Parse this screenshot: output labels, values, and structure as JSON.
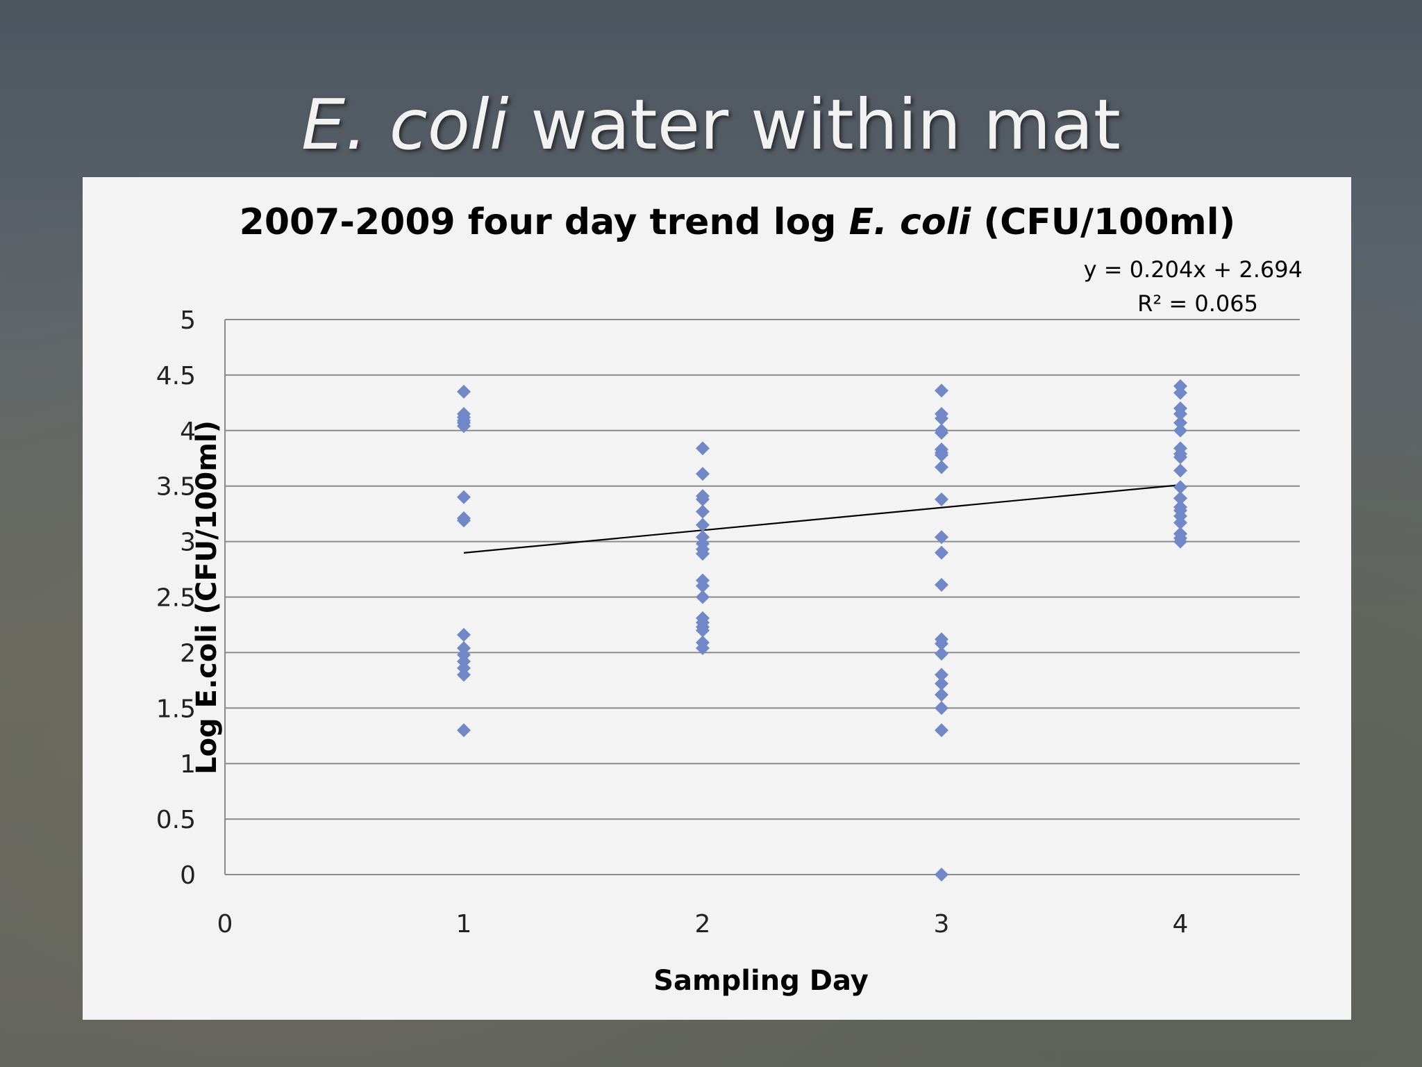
{
  "slide": {
    "title_italic": "E. coli",
    "title_rest": " water within mat"
  },
  "chart_data": {
    "type": "scatter",
    "title_prefix": "2007-2009 four day trend log ",
    "title_italic": "E. coli",
    "title_suffix": " (CFU/100ml)",
    "xlabel": "Sampling Day",
    "ylabel": "Log E.coli (CFU/100ml)",
    "xlim": [
      0,
      4.5
    ],
    "ylim": [
      0,
      5
    ],
    "x_ticks": [
      "0",
      "1",
      "2",
      "3",
      "4"
    ],
    "y_ticks": [
      "0",
      "0.5",
      "1",
      "1.5",
      "2",
      "2.5",
      "3",
      "3.5",
      "4",
      "4.5",
      "5"
    ],
    "grid": true,
    "marker_color": "#7088c8",
    "trendline": {
      "slope": 0.204,
      "intercept": 2.694,
      "x_range": [
        1,
        4
      ],
      "equation_label": "y = 0.204x + 2.694",
      "r2_label": "R² = 0.065",
      "color": "#000000"
    },
    "points": [
      {
        "x": 1,
        "y": 4.35
      },
      {
        "x": 1,
        "y": 4.15
      },
      {
        "x": 1,
        "y": 4.12
      },
      {
        "x": 1,
        "y": 4.09
      },
      {
        "x": 1,
        "y": 4.07
      },
      {
        "x": 1,
        "y": 4.04
      },
      {
        "x": 1,
        "y": 3.4
      },
      {
        "x": 1,
        "y": 3.21
      },
      {
        "x": 1,
        "y": 3.19
      },
      {
        "x": 1,
        "y": 2.16
      },
      {
        "x": 1,
        "y": 2.04
      },
      {
        "x": 1,
        "y": 1.98
      },
      {
        "x": 1,
        "y": 1.92
      },
      {
        "x": 1,
        "y": 1.86
      },
      {
        "x": 1,
        "y": 1.8
      },
      {
        "x": 1,
        "y": 1.3
      },
      {
        "x": 2,
        "y": 3.84
      },
      {
        "x": 2,
        "y": 3.61
      },
      {
        "x": 2,
        "y": 3.41
      },
      {
        "x": 2,
        "y": 3.38
      },
      {
        "x": 2,
        "y": 3.27
      },
      {
        "x": 2,
        "y": 3.15
      },
      {
        "x": 2,
        "y": 3.04
      },
      {
        "x": 2,
        "y": 2.98
      },
      {
        "x": 2,
        "y": 2.93
      },
      {
        "x": 2,
        "y": 2.89
      },
      {
        "x": 2,
        "y": 2.65
      },
      {
        "x": 2,
        "y": 2.6
      },
      {
        "x": 2,
        "y": 2.5
      },
      {
        "x": 2,
        "y": 2.31
      },
      {
        "x": 2,
        "y": 2.27
      },
      {
        "x": 2,
        "y": 2.23
      },
      {
        "x": 2,
        "y": 2.2
      },
      {
        "x": 2,
        "y": 2.09
      },
      {
        "x": 2,
        "y": 2.04
      },
      {
        "x": 3,
        "y": 4.36
      },
      {
        "x": 3,
        "y": 4.15
      },
      {
        "x": 3,
        "y": 4.11
      },
      {
        "x": 3,
        "y": 4.0
      },
      {
        "x": 3,
        "y": 3.98
      },
      {
        "x": 3,
        "y": 3.83
      },
      {
        "x": 3,
        "y": 3.8
      },
      {
        "x": 3,
        "y": 3.78
      },
      {
        "x": 3,
        "y": 3.67
      },
      {
        "x": 3,
        "y": 3.38
      },
      {
        "x": 3,
        "y": 3.04
      },
      {
        "x": 3,
        "y": 2.9
      },
      {
        "x": 3,
        "y": 2.61
      },
      {
        "x": 3,
        "y": 2.12
      },
      {
        "x": 3,
        "y": 2.08
      },
      {
        "x": 3,
        "y": 1.99
      },
      {
        "x": 3,
        "y": 1.8
      },
      {
        "x": 3,
        "y": 1.72
      },
      {
        "x": 3,
        "y": 1.62
      },
      {
        "x": 3,
        "y": 1.5
      },
      {
        "x": 3,
        "y": 1.3
      },
      {
        "x": 3,
        "y": 0.0
      },
      {
        "x": 4,
        "y": 4.4
      },
      {
        "x": 4,
        "y": 4.34
      },
      {
        "x": 4,
        "y": 4.2
      },
      {
        "x": 4,
        "y": 4.15
      },
      {
        "x": 4,
        "y": 4.07
      },
      {
        "x": 4,
        "y": 4.0
      },
      {
        "x": 4,
        "y": 3.84
      },
      {
        "x": 4,
        "y": 3.79
      },
      {
        "x": 4,
        "y": 3.76
      },
      {
        "x": 4,
        "y": 3.64
      },
      {
        "x": 4,
        "y": 3.49
      },
      {
        "x": 4,
        "y": 3.39
      },
      {
        "x": 4,
        "y": 3.31
      },
      {
        "x": 4,
        "y": 3.28
      },
      {
        "x": 4,
        "y": 3.23
      },
      {
        "x": 4,
        "y": 3.17
      },
      {
        "x": 4,
        "y": 3.07
      },
      {
        "x": 4,
        "y": 3.03
      },
      {
        "x": 4,
        "y": 3.0
      }
    ]
  }
}
